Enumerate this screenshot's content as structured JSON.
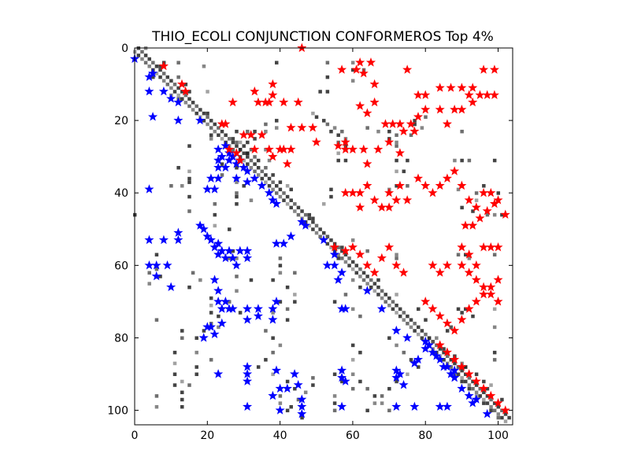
{
  "chart_data": {
    "type": "scatter",
    "title": "THIO_ECOLI CONJUNCTION CONFORMEROS Top 4%",
    "xlabel": "",
    "ylabel": "",
    "xlim": [
      0,
      104
    ],
    "ylim": [
      104,
      0
    ],
    "y_inverted": true,
    "grid": false,
    "legend": "none",
    "x_ticks": [
      0,
      20,
      40,
      60,
      80,
      100
    ],
    "y_ticks": [
      0,
      20,
      40,
      60,
      80,
      100
    ],
    "x_tick_labels": [
      "0",
      "20",
      "40",
      "60",
      "80",
      "100"
    ],
    "y_tick_labels": [
      "0",
      "20",
      "40",
      "60",
      "80",
      "100"
    ],
    "marker": "star",
    "colors": {
      "lower": "#0000ff",
      "upper": "#ff0000",
      "background_map": "grayscale"
    },
    "series": [
      {
        "color": "#0000ff",
        "points": [
          [
            0,
            3
          ],
          [
            4,
            8
          ],
          [
            4,
            12
          ],
          [
            5,
            7
          ],
          [
            5,
            19
          ],
          [
            8,
            12
          ],
          [
            10,
            14
          ],
          [
            12,
            15
          ],
          [
            12,
            20
          ],
          [
            18,
            20
          ],
          [
            20,
            39
          ],
          [
            21,
            36
          ],
          [
            22,
            39
          ],
          [
            23,
            28
          ],
          [
            23,
            31
          ],
          [
            23,
            33
          ],
          [
            23,
            36
          ],
          [
            24,
            30
          ],
          [
            25,
            27
          ],
          [
            25,
            33
          ],
          [
            26,
            29
          ],
          [
            26,
            31
          ],
          [
            27,
            30
          ],
          [
            28,
            32
          ],
          [
            28,
            36
          ],
          [
            29,
            31
          ],
          [
            30,
            33
          ],
          [
            31,
            34
          ],
          [
            31,
            37
          ],
          [
            33,
            36
          ],
          [
            35,
            38
          ],
          [
            37,
            40
          ],
          [
            38,
            42
          ],
          [
            39,
            43
          ],
          [
            4,
            39
          ],
          [
            4,
            53
          ],
          [
            4,
            60
          ],
          [
            6,
            60
          ],
          [
            6,
            63
          ],
          [
            8,
            53
          ],
          [
            9,
            60
          ],
          [
            10,
            66
          ],
          [
            12,
            51
          ],
          [
            12,
            53
          ],
          [
            18,
            49
          ],
          [
            19,
            50
          ],
          [
            20,
            52
          ],
          [
            21,
            53
          ],
          [
            22,
            55
          ],
          [
            23,
            54
          ],
          [
            23,
            57
          ],
          [
            24,
            56
          ],
          [
            25,
            58
          ],
          [
            26,
            56
          ],
          [
            27,
            58
          ],
          [
            28,
            60
          ],
          [
            29,
            56
          ],
          [
            31,
            56
          ],
          [
            31,
            58
          ],
          [
            22,
            64
          ],
          [
            23,
            67
          ],
          [
            23,
            70
          ],
          [
            24,
            72
          ],
          [
            25,
            70
          ],
          [
            26,
            72
          ],
          [
            27,
            72
          ],
          [
            31,
            72
          ],
          [
            31,
            75
          ],
          [
            34,
            72
          ],
          [
            34,
            74
          ],
          [
            38,
            72
          ],
          [
            38,
            75
          ],
          [
            39,
            70
          ],
          [
            20,
            77
          ],
          [
            19,
            80
          ],
          [
            21,
            77
          ],
          [
            22,
            79
          ],
          [
            24,
            76
          ],
          [
            39,
            54
          ],
          [
            41,
            54
          ],
          [
            43,
            52
          ],
          [
            46,
            48
          ],
          [
            47,
            49
          ],
          [
            52,
            53
          ],
          [
            53,
            60
          ],
          [
            55,
            57
          ],
          [
            56,
            64
          ],
          [
            57,
            62
          ],
          [
            57,
            72
          ],
          [
            58,
            72
          ],
          [
            55,
            60
          ],
          [
            64,
            67
          ],
          [
            68,
            72
          ],
          [
            72,
            78
          ],
          [
            75,
            80
          ],
          [
            77,
            87
          ],
          [
            80,
            83
          ],
          [
            82,
            84
          ],
          [
            84,
            86
          ],
          [
            86,
            88
          ],
          [
            87,
            90
          ],
          [
            88,
            91
          ],
          [
            90,
            94
          ],
          [
            92,
            96
          ],
          [
            93,
            98
          ],
          [
            94,
            97
          ],
          [
            97,
            101
          ],
          [
            23,
            90
          ],
          [
            31,
            88
          ],
          [
            31,
            90
          ],
          [
            31,
            92
          ],
          [
            31,
            99
          ],
          [
            39,
            89
          ],
          [
            40,
            94
          ],
          [
            38,
            96
          ],
          [
            40,
            100
          ],
          [
            42,
            94
          ],
          [
            44,
            90
          ],
          [
            45,
            93
          ],
          [
            46,
            97
          ],
          [
            46,
            99
          ],
          [
            46,
            101
          ],
          [
            57,
            89
          ],
          [
            57,
            91
          ],
          [
            58,
            92
          ],
          [
            57,
            99
          ],
          [
            72,
            89
          ],
          [
            72,
            91
          ],
          [
            72,
            99
          ],
          [
            73,
            90
          ],
          [
            74,
            93
          ],
          [
            77,
            87
          ],
          [
            77,
            99
          ],
          [
            84,
            99
          ],
          [
            86,
            99
          ],
          [
            78,
            86
          ],
          [
            80,
            81
          ],
          [
            81,
            82
          ],
          [
            83,
            85
          ],
          [
            85,
            88
          ],
          [
            88,
            89
          ],
          [
            88,
            91
          ]
        ]
      },
      {
        "color": "#ff0000",
        "points": [
          [
            46,
            0
          ],
          [
            62,
            4
          ],
          [
            65,
            4
          ],
          [
            57,
            6
          ],
          [
            61,
            6
          ],
          [
            63,
            7
          ],
          [
            66,
            10
          ],
          [
            75,
            6
          ],
          [
            78,
            13
          ],
          [
            84,
            11
          ],
          [
            87,
            11
          ],
          [
            90,
            11
          ],
          [
            93,
            11
          ],
          [
            96,
            6
          ],
          [
            99,
            6
          ],
          [
            97,
            13
          ],
          [
            93,
            15
          ],
          [
            8,
            5
          ],
          [
            13,
            10
          ],
          [
            14,
            12
          ],
          [
            27,
            15
          ],
          [
            33,
            12
          ],
          [
            34,
            15
          ],
          [
            36,
            15
          ],
          [
            37,
            15
          ],
          [
            38,
            10
          ],
          [
            38,
            13
          ],
          [
            41,
            15
          ],
          [
            45,
            15
          ],
          [
            24,
            21
          ],
          [
            25,
            21
          ],
          [
            26,
            28
          ],
          [
            28,
            29
          ],
          [
            29,
            31
          ],
          [
            30,
            24
          ],
          [
            32,
            24
          ],
          [
            33,
            28
          ],
          [
            35,
            24
          ],
          [
            37,
            28
          ],
          [
            38,
            30
          ],
          [
            40,
            28
          ],
          [
            41,
            28
          ],
          [
            42,
            32
          ],
          [
            43,
            22
          ],
          [
            43,
            28
          ],
          [
            46,
            22
          ],
          [
            49,
            22
          ],
          [
            50,
            26
          ],
          [
            56,
            27
          ],
          [
            58,
            26
          ],
          [
            58,
            28
          ],
          [
            60,
            28
          ],
          [
            63,
            28
          ],
          [
            64,
            32
          ],
          [
            67,
            28
          ],
          [
            70,
            26
          ],
          [
            73,
            29
          ],
          [
            69,
            21
          ],
          [
            71,
            21
          ],
          [
            73,
            21
          ],
          [
            74,
            23
          ],
          [
            76,
            21
          ],
          [
            77,
            23
          ],
          [
            78,
            19
          ],
          [
            80,
            13
          ],
          [
            80,
            17
          ],
          [
            84,
            17
          ],
          [
            86,
            21
          ],
          [
            88,
            17
          ],
          [
            90,
            17
          ],
          [
            92,
            13
          ],
          [
            95,
            13
          ],
          [
            99,
            13
          ],
          [
            62,
            16
          ],
          [
            64,
            18
          ],
          [
            66,
            15
          ],
          [
            58,
            40
          ],
          [
            60,
            40
          ],
          [
            62,
            40
          ],
          [
            62,
            44
          ],
          [
            64,
            38
          ],
          [
            66,
            42
          ],
          [
            68,
            44
          ],
          [
            70,
            40
          ],
          [
            70,
            44
          ],
          [
            72,
            42
          ],
          [
            73,
            38
          ],
          [
            75,
            42
          ],
          [
            78,
            36
          ],
          [
            80,
            38
          ],
          [
            82,
            40
          ],
          [
            84,
            38
          ],
          [
            86,
            36
          ],
          [
            88,
            34
          ],
          [
            90,
            38
          ],
          [
            92,
            42
          ],
          [
            94,
            44
          ],
          [
            96,
            40
          ],
          [
            98,
            40
          ],
          [
            100,
            42
          ],
          [
            91,
            49
          ],
          [
            93,
            49
          ],
          [
            95,
            47
          ],
          [
            97,
            45
          ],
          [
            99,
            43
          ],
          [
            102,
            46
          ],
          [
            55,
            55
          ],
          [
            58,
            56
          ],
          [
            60,
            55
          ],
          [
            62,
            57
          ],
          [
            64,
            60
          ],
          [
            66,
            62
          ],
          [
            68,
            58
          ],
          [
            70,
            55
          ],
          [
            72,
            60
          ],
          [
            74,
            62
          ],
          [
            82,
            60
          ],
          [
            84,
            62
          ],
          [
            86,
            60
          ],
          [
            90,
            55
          ],
          [
            92,
            57
          ],
          [
            94,
            60
          ],
          [
            96,
            55
          ],
          [
            98,
            55
          ],
          [
            100,
            55
          ],
          [
            80,
            70
          ],
          [
            82,
            72
          ],
          [
            84,
            74
          ],
          [
            86,
            76
          ],
          [
            88,
            78
          ],
          [
            90,
            75
          ],
          [
            92,
            72
          ],
          [
            94,
            70
          ],
          [
            96,
            68
          ],
          [
            98,
            66
          ],
          [
            100,
            64
          ],
          [
            84,
            82
          ],
          [
            86,
            84
          ],
          [
            88,
            86
          ],
          [
            90,
            88
          ],
          [
            92,
            90
          ],
          [
            94,
            92
          ],
          [
            96,
            94
          ],
          [
            98,
            96
          ],
          [
            100,
            98
          ],
          [
            102,
            100
          ],
          [
            90,
            60
          ],
          [
            92,
            62
          ],
          [
            94,
            64
          ],
          [
            96,
            66
          ],
          [
            98,
            68
          ],
          [
            100,
            70
          ]
        ]
      }
    ]
  }
}
